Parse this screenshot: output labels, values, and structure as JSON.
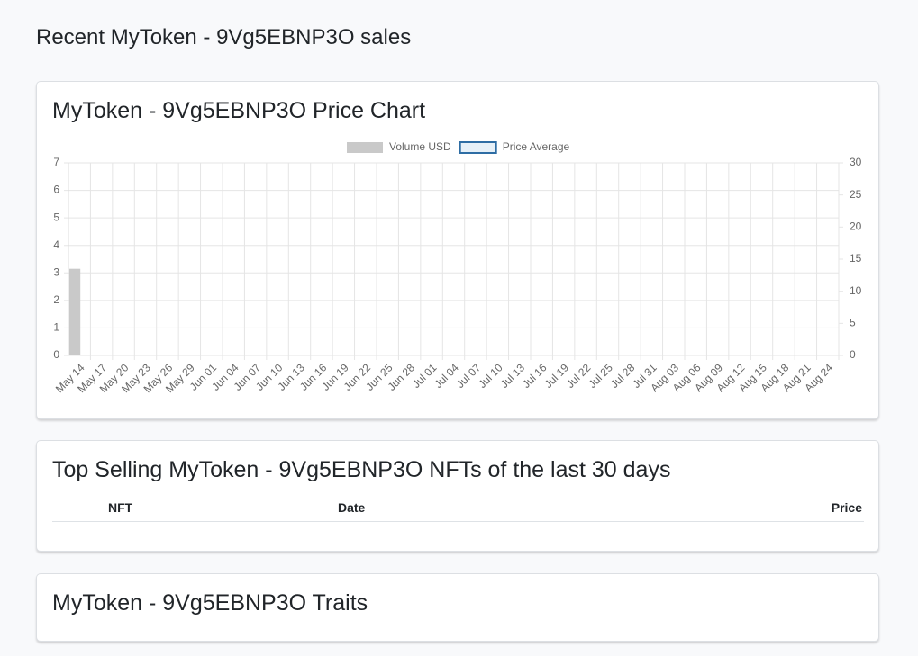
{
  "page_title": "Recent MyToken - 9Vg5EBNP3O sales",
  "chart_card": {
    "title": "MyToken - 9Vg5EBNP3O Price Chart"
  },
  "chart_data": {
    "type": "bar_line",
    "categories": [
      "May 14",
      "May 17",
      "May 20",
      "May 23",
      "May 26",
      "May 29",
      "Jun 01",
      "Jun 04",
      "Jun 07",
      "Jun 10",
      "Jun 13",
      "Jun 16",
      "Jun 19",
      "Jun 22",
      "Jun 25",
      "Jun 28",
      "Jul 01",
      "Jul 04",
      "Jul 07",
      "Jul 10",
      "Jul 13",
      "Jul 16",
      "Jul 19",
      "Jul 22",
      "Jul 25",
      "Jul 28",
      "Jul 31",
      "Aug 03",
      "Aug 06",
      "Aug 09",
      "Aug 12",
      "Aug 15",
      "Aug 18",
      "Aug 21",
      "Aug 24"
    ],
    "series": [
      {
        "name": "Volume USD",
        "type": "bar",
        "color": "#c9c9c9",
        "values": [
          3.15,
          0,
          0,
          0,
          0,
          0,
          0,
          0,
          0,
          0,
          0,
          0,
          0,
          0,
          0,
          0,
          0,
          0,
          0,
          0,
          0,
          0,
          0,
          0,
          0,
          0,
          0,
          0,
          0,
          0,
          0,
          0,
          0,
          0,
          0
        ]
      },
      {
        "name": "Price Average",
        "type": "line",
        "axis": "y2",
        "color": "#2e6da4",
        "values": [
          null,
          null,
          null,
          null,
          null,
          null,
          null,
          null,
          null,
          null,
          null,
          null,
          null,
          null,
          null,
          null,
          null,
          null,
          null,
          null,
          null,
          null,
          null,
          null,
          null,
          null,
          null,
          null,
          null,
          null,
          null,
          null,
          null,
          null,
          null
        ]
      }
    ],
    "ylim": [
      0,
      7
    ],
    "yticks": [
      0,
      1,
      2,
      3,
      4,
      5,
      6,
      7
    ],
    "y2lim": [
      0,
      30
    ],
    "y2ticks": [
      0,
      5,
      10,
      15,
      20,
      25,
      30
    ],
    "grid": true,
    "legend": "top"
  },
  "top_selling": {
    "title": "Top Selling MyToken - 9Vg5EBNP3O NFTs of the last 30 days",
    "table": {
      "headers": [
        "NFT",
        "Date",
        "Price"
      ]
    }
  },
  "traits": {
    "title": "MyToken - 9Vg5EBNP3O Traits"
  }
}
